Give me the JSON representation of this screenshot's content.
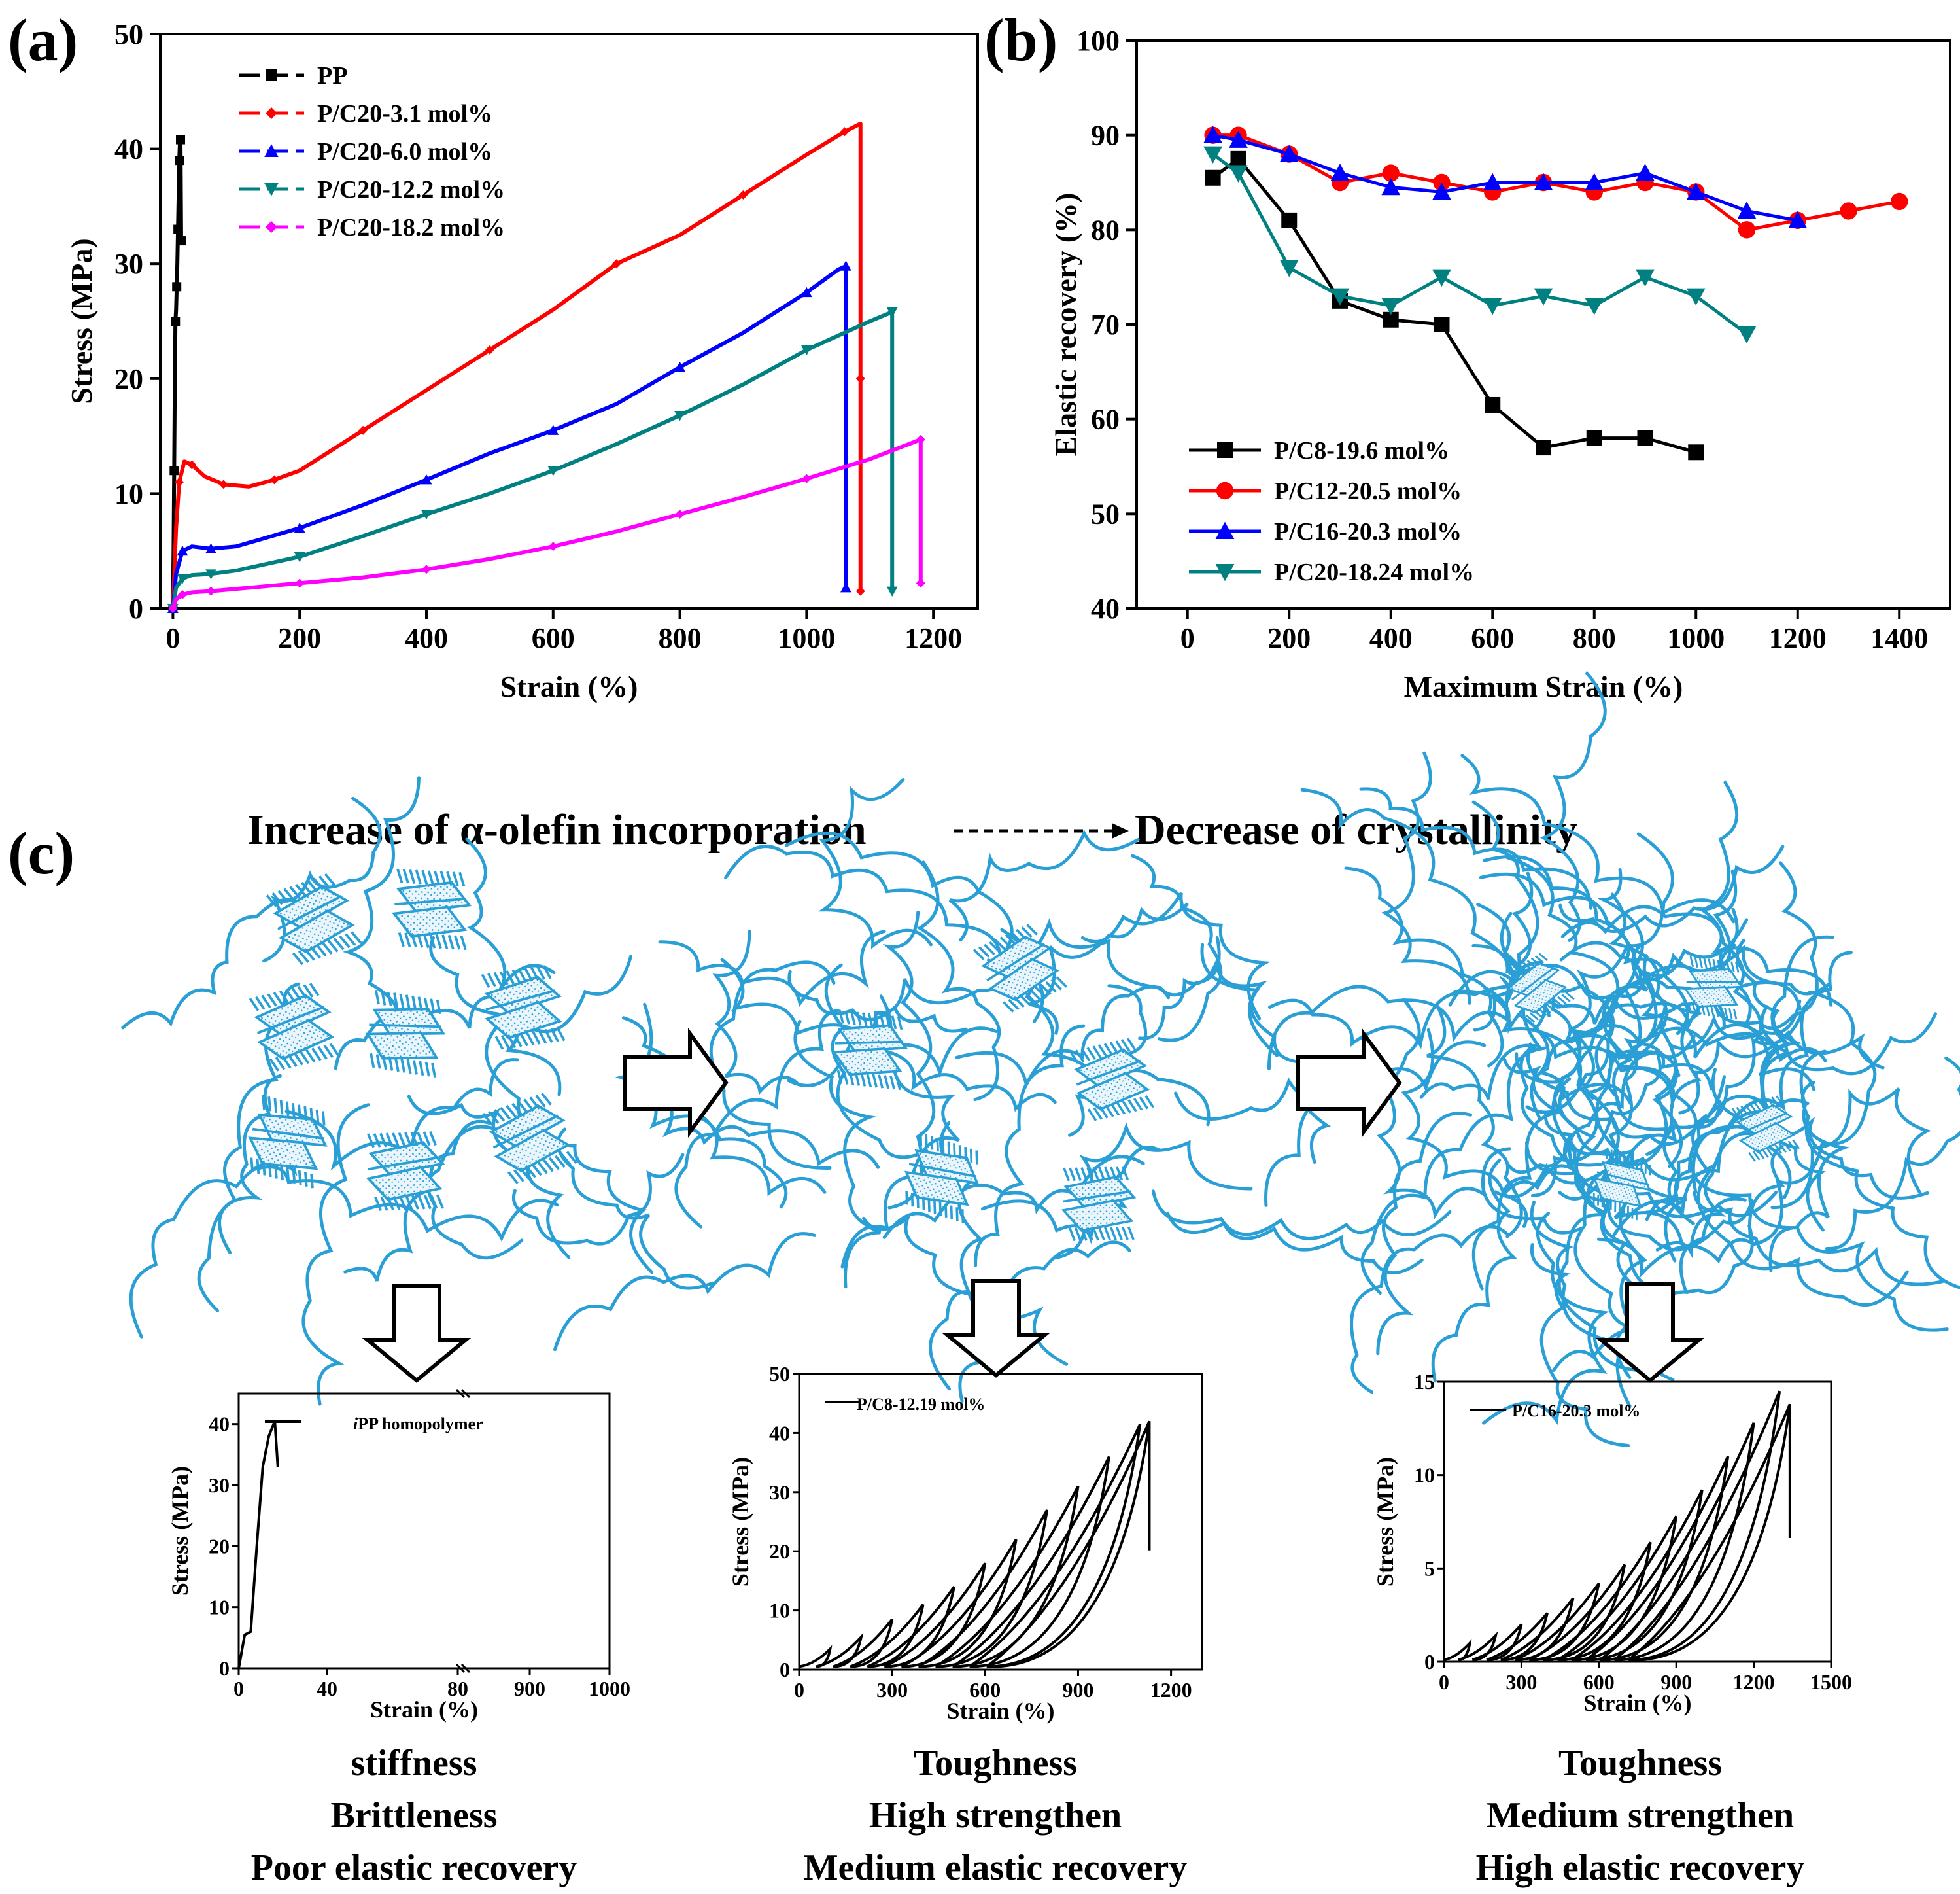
{
  "chart_data": [
    {
      "panel": "(a)",
      "type": "line",
      "xlabel": "Strain (%)",
      "ylabel": "Stress (MPa)",
      "xlim": [
        -20,
        1270
      ],
      "ylim": [
        0,
        50
      ],
      "xticks": [
        0,
        200,
        400,
        600,
        800,
        1000,
        1200
      ],
      "yticks": [
        0,
        10,
        20,
        30,
        40,
        50
      ],
      "legend_position": "top-left",
      "series": [
        {
          "name": "PP",
          "color": "#000000",
          "marker": "square",
          "x": [
            0,
            1,
            2,
            3,
            4,
            5,
            6,
            7,
            8,
            9,
            10,
            11,
            12,
            13
          ],
          "y": [
            0,
            5,
            12,
            20,
            25,
            26,
            28,
            30,
            33,
            36,
            39,
            40.5,
            40.8,
            32
          ]
        },
        {
          "name": "P/C20-3.1 mol%",
          "color": "#ff0000",
          "marker": "diamond",
          "x": [
            0,
            5,
            10,
            18,
            30,
            50,
            80,
            120,
            160,
            200,
            300,
            400,
            500,
            600,
            700,
            800,
            900,
            1000,
            1060,
            1085,
            1085,
            1085
          ],
          "y": [
            0,
            7,
            11,
            12.8,
            12.5,
            11.5,
            10.8,
            10.6,
            11.2,
            12,
            15.5,
            19,
            22.5,
            26,
            30,
            32.5,
            36,
            39.5,
            41.5,
            42.2,
            20,
            1.5
          ]
        },
        {
          "name": "P/C20-6.0 mol%",
          "color": "#0000ff",
          "marker": "triangle-up",
          "x": [
            0,
            5,
            15,
            30,
            60,
            100,
            200,
            300,
            400,
            500,
            600,
            700,
            800,
            900,
            1000,
            1050,
            1062,
            1062
          ],
          "y": [
            0,
            3,
            5,
            5.4,
            5.2,
            5.4,
            7,
            9,
            11.2,
            13.5,
            15.5,
            17.8,
            21,
            24,
            27.5,
            29.5,
            29.8,
            1.8
          ]
        },
        {
          "name": "P/C20-12.2 mol%",
          "color": "#008080",
          "marker": "triangle-down",
          "x": [
            0,
            5,
            15,
            30,
            60,
            100,
            200,
            300,
            400,
            500,
            600,
            700,
            800,
            900,
            1000,
            1100,
            1135,
            1135
          ],
          "y": [
            0,
            1.8,
            2.6,
            2.9,
            3,
            3.3,
            4.5,
            6.3,
            8.2,
            10,
            12,
            14.3,
            16.8,
            19.5,
            22.5,
            25,
            25.8,
            1.5
          ]
        },
        {
          "name": "P/C20-18.2 mol%",
          "color": "#ff00ff",
          "marker": "diamond",
          "x": [
            0,
            5,
            15,
            30,
            60,
            100,
            200,
            300,
            400,
            500,
            600,
            700,
            800,
            900,
            1000,
            1100,
            1180,
            1180
          ],
          "y": [
            0,
            0.8,
            1.2,
            1.4,
            1.5,
            1.7,
            2.2,
            2.7,
            3.4,
            4.3,
            5.4,
            6.7,
            8.2,
            9.7,
            11.3,
            13,
            14.7,
            2.2
          ]
        }
      ]
    },
    {
      "panel": "(b)",
      "type": "line",
      "xlabel": "Maximum Strain (%)",
      "ylabel": "Elastic recovery (%)",
      "xlim": [
        -100,
        1500
      ],
      "ylim": [
        40,
        100
      ],
      "xticks": [
        0,
        200,
        400,
        600,
        800,
        1000,
        1200,
        1400
      ],
      "yticks": [
        40,
        50,
        60,
        70,
        80,
        90,
        100
      ],
      "legend_position": "bottom-left",
      "series": [
        {
          "name": "P/C8-19.6 mol%",
          "color": "#000000",
          "marker": "square",
          "x": [
            50,
            100,
            200,
            300,
            400,
            500,
            600,
            700,
            800,
            900,
            1000
          ],
          "y": [
            85.5,
            87.5,
            81,
            72.5,
            70.5,
            70,
            61.5,
            57,
            58,
            58,
            56.5
          ]
        },
        {
          "name": "P/C12-20.5 mol%",
          "color": "#ff0000",
          "marker": "circle",
          "x": [
            50,
            100,
            200,
            300,
            400,
            500,
            600,
            700,
            800,
            900,
            1000,
            1100,
            1200,
            1300,
            1400
          ],
          "y": [
            90,
            90,
            88,
            85,
            86,
            85,
            84,
            85,
            84,
            85,
            84,
            80,
            81,
            82,
            83
          ]
        },
        {
          "name": "P/C16-20.3 mol%",
          "color": "#0000ff",
          "marker": "triangle-up",
          "x": [
            50,
            100,
            200,
            300,
            400,
            500,
            600,
            700,
            800,
            900,
            1000,
            1100,
            1200
          ],
          "y": [
            90,
            89.5,
            88,
            86,
            84.5,
            84,
            85,
            85,
            85,
            86,
            84,
            82,
            81
          ]
        },
        {
          "name": "P/C20-18.24 mol%",
          "color": "#008080",
          "marker": "triangle-down",
          "x": [
            50,
            100,
            200,
            300,
            400,
            500,
            600,
            700,
            800,
            900,
            1000,
            1100
          ],
          "y": [
            88,
            86,
            76,
            73,
            72,
            75,
            72,
            73,
            72,
            75,
            73,
            69
          ]
        }
      ]
    },
    {
      "panel": "(c)-1",
      "type": "line",
      "xlabel": "Strain (%)",
      "ylabel": "Stress (MPa)",
      "ylim": [
        0,
        45
      ],
      "xticks": [
        "0",
        "40",
        "80",
        "900",
        "1000"
      ],
      "yticks": [
        0,
        10,
        20,
        30,
        40
      ],
      "legend": "iPP homopolymer",
      "series": [
        {
          "name": "iPP homopolymer",
          "x": [
            0,
            2,
            4,
            6,
            8,
            10,
            12,
            13
          ],
          "y": [
            0,
            5.5,
            6,
            20,
            33,
            38,
            40.5,
            33
          ]
        }
      ]
    },
    {
      "panel": "(c)-2",
      "type": "line",
      "xlabel": "Strain (%)",
      "ylabel": "Stress (MPa)",
      "xlim": [
        0,
        1300
      ],
      "ylim": [
        0,
        50
      ],
      "xticks": [
        0,
        300,
        600,
        900,
        1200
      ],
      "yticks": [
        0,
        10,
        20,
        30,
        40,
        50
      ],
      "legend": "P/C8-12.19 mol%",
      "cycle_peaks_x": [
        100,
        200,
        300,
        400,
        500,
        600,
        700,
        800,
        900,
        1000,
        1100,
        1130
      ],
      "cycle_peaks_y": [
        3.5,
        5.5,
        8.5,
        11,
        14,
        18,
        22,
        27,
        31,
        36,
        41.5,
        42
      ]
    },
    {
      "panel": "(c)-3",
      "type": "line",
      "xlabel": "Strain (%)",
      "ylabel": "Stress (MPa)",
      "xlim": [
        0,
        1500
      ],
      "ylim": [
        0,
        15
      ],
      "xticks": [
        0,
        300,
        600,
        900,
        1200,
        1500
      ],
      "yticks": [
        0,
        5,
        10,
        15
      ],
      "legend": "P/C16-20.3 mol%",
      "cycle_peaks_x": [
        100,
        200,
        300,
        400,
        500,
        600,
        700,
        800,
        900,
        1000,
        1100,
        1200,
        1300,
        1340
      ],
      "cycle_peaks_y": [
        1,
        1.4,
        2,
        2.6,
        3.4,
        4.2,
        5.2,
        6.4,
        7.8,
        9.2,
        11,
        12.8,
        14.5,
        13.8
      ]
    }
  ],
  "labels": {
    "a": "(a)",
    "b": "(b)",
    "c": "(c)"
  },
  "headline": {
    "left": "Increase of α-olefin incorporation",
    "right": "Decrease of crystallinity"
  },
  "captions": {
    "left": [
      "stiffness",
      "Brittleness",
      "Poor elastic recovery"
    ],
    "middle": [
      "Toughness",
      "High strengthen",
      "Medium elastic recovery"
    ],
    "right": [
      "Toughness",
      "Medium strengthen",
      "High elastic recovery"
    ]
  },
  "inset_legends": {
    "left_italic": "i",
    "left_rest": "PP homopolymer"
  },
  "colors": {
    "chain": "#2a9fd6",
    "teal": "#008080",
    "red": "#ff0000",
    "blue": "#0000ff",
    "magenta": "#ff00ff"
  }
}
